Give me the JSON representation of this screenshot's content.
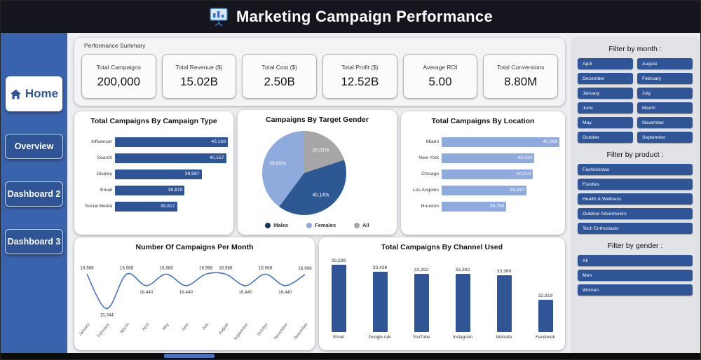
{
  "header": {
    "title": "Marketing Campaign Performance"
  },
  "sidebar": {
    "home": {
      "label": "Home"
    },
    "items": [
      {
        "label": "Overview"
      },
      {
        "label": "Dashboard 2"
      },
      {
        "label": "Dashboard 3"
      }
    ]
  },
  "summary": {
    "label": "Performance Summary",
    "cards": [
      {
        "title": "Total Campaigns",
        "value": "200,000"
      },
      {
        "title": "Total Revenue ($)",
        "value": "15.02B"
      },
      {
        "title": "Total Cost ($)",
        "value": "2.50B"
      },
      {
        "title": "Total Profit ($)",
        "value": "12.52B"
      },
      {
        "title": "Average ROI",
        "value": "5.00"
      },
      {
        "title": "Total Conversions",
        "value": "8.80M"
      }
    ]
  },
  "chart_data": [
    {
      "id": "campaign-type",
      "type": "bar",
      "orientation": "horizontal",
      "title": "Total Campaigns By Campaign Type",
      "categories": [
        "Influencer",
        "Search",
        "Display",
        "Email",
        "Social Media"
      ],
      "values": [
        40169,
        40157,
        39987,
        39870,
        39817
      ],
      "value_labels": [
        "40,169",
        "40,157",
        "39,987",
        "39,870",
        "39,817"
      ],
      "bar_color": "#2f5597"
    },
    {
      "id": "target-gender",
      "type": "pie",
      "title": "Campaigns By Target Gender",
      "slices": [
        {
          "label": "All",
          "pct": 20.01,
          "display": "20.01%",
          "color": "#a6a6a6"
        },
        {
          "label": "Males",
          "pct": 40.14,
          "display": "40.14%",
          "color": "#2d5894"
        },
        {
          "label": "Females",
          "pct": 39.85,
          "display": "39.85%",
          "color": "#8faadc"
        }
      ],
      "legend": [
        {
          "label": "Males",
          "color": "#17375e"
        },
        {
          "label": "Females",
          "color": "#8faadc"
        },
        {
          "label": "All",
          "color": "#a6a6a6"
        }
      ]
    },
    {
      "id": "location",
      "type": "bar",
      "orientation": "horizontal",
      "title": "Total Campaigns By Location",
      "categories": [
        "Miami",
        "New York",
        "Chicago",
        "Los Angeles",
        "Houston"
      ],
      "values": [
        40269,
        40024,
        40010,
        39947,
        39750
      ],
      "value_labels": [
        "40,269",
        "40,024",
        "40,010",
        "39,947",
        "39,750"
      ],
      "bar_color": "#8faadc"
    },
    {
      "id": "campaigns-per-month",
      "type": "line",
      "title": "Number Of Campaigns Per Month",
      "categories": [
        "January",
        "February",
        "March",
        "April",
        "May",
        "June",
        "July",
        "August",
        "September",
        "October",
        "November",
        "December"
      ],
      "values": [
        16988,
        15344,
        16988,
        16440,
        16988,
        16440,
        16988,
        16988,
        16440,
        16988,
        16440,
        16968
      ],
      "value_labels": [
        "16,988",
        "15,344",
        "16,988",
        "16,440",
        "16,988",
        "16,440",
        "16,988",
        "16,988",
        "16,440",
        "16,988",
        "16,440",
        "16,968"
      ],
      "line_color": "#4472c4",
      "ylim": [
        15000,
        17400
      ]
    },
    {
      "id": "channel-used",
      "type": "bar",
      "orientation": "vertical",
      "title": "Total Campaigns By Channel Used",
      "categories": [
        "Email",
        "Google Ads",
        "YouTube",
        "Instagram",
        "Website",
        "Facebook"
      ],
      "values": [
        33599,
        33438,
        33392,
        33392,
        33360,
        32819
      ],
      "value_labels": [
        "33,599",
        "33,438",
        "33,392",
        "33,392",
        "33,360",
        "32,819"
      ],
      "bar_color": "#2f5597"
    }
  ],
  "filters": {
    "month": {
      "label": "Filter by month :",
      "options": [
        "April",
        "August",
        "December",
        "February",
        "January",
        "July",
        "June",
        "March",
        "May",
        "November",
        "October",
        "September"
      ]
    },
    "product": {
      "label": "Filter by product :",
      "options": [
        "Fashionistas",
        "Foodies",
        "Health & Wellness",
        "Outdoor Adventurers",
        "Tech Enthusiasts"
      ]
    },
    "gender": {
      "label": "Filter by gender :",
      "options": [
        "All",
        "Men",
        "Women"
      ]
    }
  },
  "scrollbar_color": "#4472c4"
}
